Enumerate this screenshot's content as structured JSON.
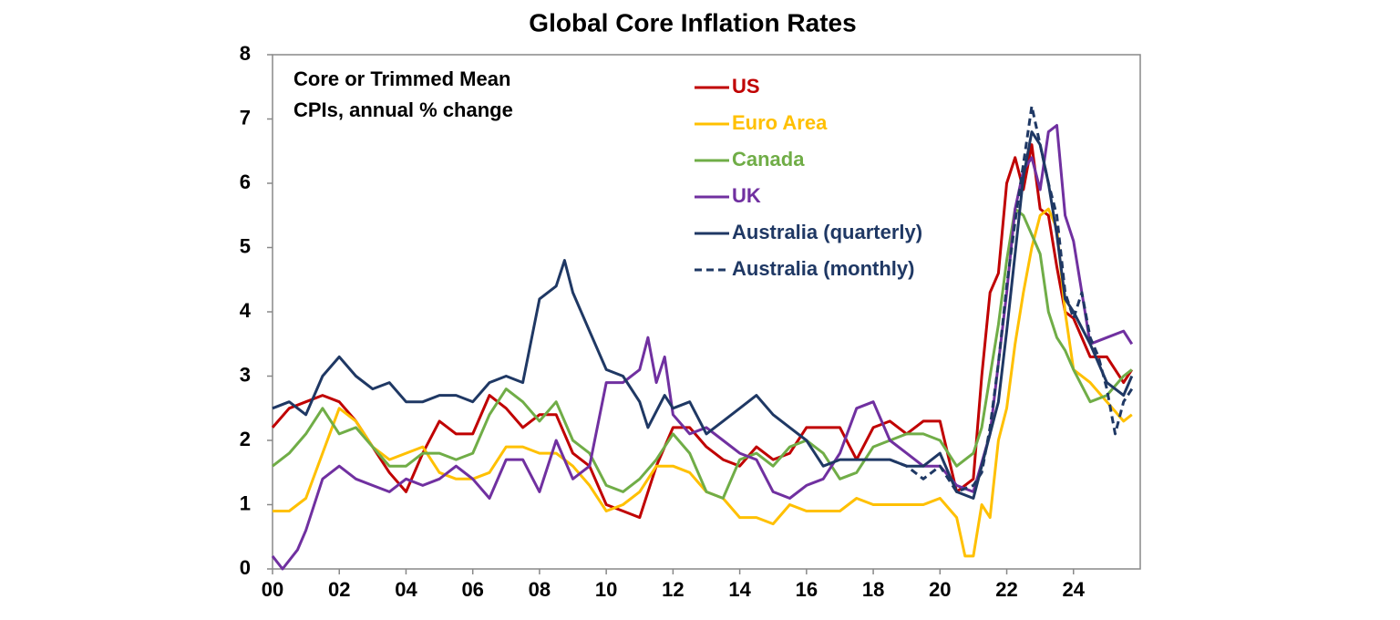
{
  "chart_data": {
    "type": "line",
    "title": "Global Core Inflation Rates",
    "annotation": [
      "Core or Trimmed Mean",
      "CPIs, annual % change"
    ],
    "xlim": [
      2000,
      2026
    ],
    "ylim": [
      0,
      8
    ],
    "yticks": [
      0,
      1,
      2,
      3,
      4,
      5,
      6,
      7,
      8
    ],
    "xticks": [
      {
        "value": 2000,
        "label": "00"
      },
      {
        "value": 2002,
        "label": "02"
      },
      {
        "value": 2004,
        "label": "04"
      },
      {
        "value": 2006,
        "label": "06"
      },
      {
        "value": 2008,
        "label": "08"
      },
      {
        "value": 2010,
        "label": "10"
      },
      {
        "value": 2012,
        "label": "12"
      },
      {
        "value": 2014,
        "label": "14"
      },
      {
        "value": 2016,
        "label": "16"
      },
      {
        "value": 2018,
        "label": "18"
      },
      {
        "value": 2020,
        "label": "20"
      },
      {
        "value": 2022,
        "label": "22"
      },
      {
        "value": 2024,
        "label": "24"
      }
    ],
    "grid": false,
    "legend": "top-center",
    "series": [
      {
        "name": "US",
        "color": "#c00000",
        "dashed": false,
        "x": [
          2000,
          2000.5,
          2001,
          2001.5,
          2002,
          2002.5,
          2003,
          2003.5,
          2004,
          2004.5,
          2005,
          2005.5,
          2006,
          2006.5,
          2007,
          2007.5,
          2008,
          2008.5,
          2009,
          2009.5,
          2010,
          2010.5,
          2011,
          2011.5,
          2012,
          2012.5,
          2013,
          2013.5,
          2014,
          2014.5,
          2015,
          2015.5,
          2016,
          2016.5,
          2017,
          2017.5,
          2018,
          2018.5,
          2019,
          2019.5,
          2020,
          2020.5,
          2021,
          2021.25,
          2021.5,
          2021.75,
          2022,
          2022.25,
          2022.5,
          2022.75,
          2023,
          2023.25,
          2023.5,
          2023.75,
          2024,
          2024.5,
          2025,
          2025.5,
          2025.75
        ],
        "values": [
          2.2,
          2.5,
          2.6,
          2.7,
          2.6,
          2.3,
          1.9,
          1.5,
          1.2,
          1.8,
          2.3,
          2.1,
          2.1,
          2.7,
          2.5,
          2.2,
          2.4,
          2.4,
          1.8,
          1.6,
          1.0,
          0.9,
          0.8,
          1.6,
          2.2,
          2.2,
          1.9,
          1.7,
          1.6,
          1.9,
          1.7,
          1.8,
          2.2,
          2.2,
          2.2,
          1.7,
          2.2,
          2.3,
          2.1,
          2.3,
          2.3,
          1.2,
          1.4,
          3.0,
          4.3,
          4.6,
          6.0,
          6.4,
          5.9,
          6.6,
          5.6,
          5.5,
          4.7,
          4.0,
          3.9,
          3.3,
          3.3,
          2.9,
          3.1
        ]
      },
      {
        "name": "Euro Area",
        "color": "#ffc000",
        "dashed": false,
        "x": [
          2000,
          2000.5,
          2001,
          2001.5,
          2002,
          2002.5,
          2003,
          2003.5,
          2004,
          2004.5,
          2005,
          2005.5,
          2006,
          2006.5,
          2007,
          2007.5,
          2008,
          2008.5,
          2009,
          2009.5,
          2010,
          2010.5,
          2011,
          2011.5,
          2012,
          2012.5,
          2013,
          2013.5,
          2014,
          2014.5,
          2015,
          2015.5,
          2016,
          2016.5,
          2017,
          2017.5,
          2018,
          2018.5,
          2019,
          2019.5,
          2020,
          2020.5,
          2020.75,
          2021,
          2021.25,
          2021.5,
          2021.75,
          2022,
          2022.25,
          2022.5,
          2022.75,
          2023,
          2023.25,
          2023.5,
          2023.75,
          2024,
          2024.5,
          2025,
          2025.5,
          2025.75
        ],
        "values": [
          0.9,
          0.9,
          1.1,
          1.8,
          2.5,
          2.3,
          1.9,
          1.7,
          1.8,
          1.9,
          1.5,
          1.4,
          1.4,
          1.5,
          1.9,
          1.9,
          1.8,
          1.8,
          1.6,
          1.3,
          0.9,
          1.0,
          1.2,
          1.6,
          1.6,
          1.5,
          1.2,
          1.1,
          0.8,
          0.8,
          0.7,
          1.0,
          0.9,
          0.9,
          0.9,
          1.1,
          1.0,
          1.0,
          1.0,
          1.0,
          1.1,
          0.8,
          0.2,
          0.2,
          1.0,
          0.8,
          2.0,
          2.5,
          3.5,
          4.3,
          5.0,
          5.5,
          5.6,
          5.3,
          4.0,
          3.1,
          2.9,
          2.6,
          2.3,
          2.4
        ]
      },
      {
        "name": "Canada",
        "color": "#70ad47",
        "dashed": false,
        "x": [
          2000,
          2000.5,
          2001,
          2001.5,
          2002,
          2002.5,
          2003,
          2003.5,
          2004,
          2004.5,
          2005,
          2005.5,
          2006,
          2006.5,
          2007,
          2007.5,
          2008,
          2008.5,
          2009,
          2009.5,
          2010,
          2010.5,
          2011,
          2011.5,
          2012,
          2012.5,
          2013,
          2013.5,
          2014,
          2014.5,
          2015,
          2015.5,
          2016,
          2016.5,
          2017,
          2017.5,
          2018,
          2018.5,
          2019,
          2019.5,
          2020,
          2020.5,
          2021,
          2021.25,
          2021.5,
          2021.75,
          2022,
          2022.25,
          2022.5,
          2022.75,
          2023,
          2023.25,
          2023.5,
          2023.75,
          2024,
          2024.5,
          2025,
          2025.5,
          2025.75
        ],
        "values": [
          1.6,
          1.8,
          2.1,
          2.5,
          2.1,
          2.2,
          1.9,
          1.6,
          1.6,
          1.8,
          1.8,
          1.7,
          1.8,
          2.4,
          2.8,
          2.6,
          2.3,
          2.6,
          2.0,
          1.8,
          1.3,
          1.2,
          1.4,
          1.7,
          2.1,
          1.8,
          1.2,
          1.1,
          1.7,
          1.8,
          1.6,
          1.9,
          2.0,
          1.8,
          1.4,
          1.5,
          1.9,
          2.0,
          2.1,
          2.1,
          2.0,
          1.6,
          1.8,
          2.2,
          3.0,
          3.8,
          4.8,
          5.6,
          5.5,
          5.2,
          4.9,
          4.0,
          3.6,
          3.4,
          3.1,
          2.6,
          2.7,
          3.0,
          3.1
        ]
      },
      {
        "name": "UK",
        "color": "#7030a0",
        "dashed": false,
        "x": [
          2000,
          2000.3,
          2000.75,
          2001,
          2001.5,
          2002,
          2002.5,
          2003,
          2003.5,
          2004,
          2004.5,
          2005,
          2005.5,
          2006,
          2006.5,
          2007,
          2007.5,
          2008,
          2008.5,
          2009,
          2009.5,
          2010,
          2010.5,
          2011,
          2011.25,
          2011.5,
          2011.75,
          2012,
          2012.5,
          2013,
          2013.5,
          2014,
          2014.5,
          2015,
          2015.5,
          2016,
          2016.5,
          2017,
          2017.5,
          2018,
          2018.5,
          2019,
          2019.5,
          2020,
          2020.5,
          2021,
          2021.5,
          2021.75,
          2022,
          2022.25,
          2022.5,
          2022.75,
          2023,
          2023.25,
          2023.5,
          2023.75,
          2024,
          2024.5,
          2025,
          2025.5,
          2025.75
        ],
        "values": [
          0.2,
          0,
          0.3,
          0.6,
          1.4,
          1.6,
          1.4,
          1.3,
          1.2,
          1.4,
          1.3,
          1.4,
          1.6,
          1.4,
          1.1,
          1.7,
          1.7,
          1.2,
          2.0,
          1.4,
          1.6,
          2.9,
          2.9,
          3.1,
          3.6,
          2.9,
          3.3,
          2.4,
          2.1,
          2.2,
          2.0,
          1.8,
          1.7,
          1.2,
          1.1,
          1.3,
          1.4,
          1.8,
          2.5,
          2.6,
          2.0,
          1.8,
          1.6,
          1.6,
          1.3,
          1.2,
          2.1,
          3.2,
          4.3,
          5.6,
          6.2,
          6.4,
          5.9,
          6.8,
          6.9,
          5.5,
          5.1,
          3.5,
          3.6,
          3.7,
          3.5
        ]
      },
      {
        "name": "Australia (quarterly)",
        "color": "#1f3864",
        "dashed": false,
        "x": [
          2000,
          2000.5,
          2001,
          2001.5,
          2002,
          2002.5,
          2003,
          2003.5,
          2004,
          2004.5,
          2005,
          2005.5,
          2006,
          2006.5,
          2007,
          2007.5,
          2008,
          2008.5,
          2008.75,
          2009,
          2009.5,
          2010,
          2010.5,
          2011,
          2011.25,
          2011.75,
          2012,
          2012.5,
          2013,
          2013.5,
          2014,
          2014.5,
          2015,
          2015.5,
          2016,
          2016.5,
          2017,
          2017.5,
          2018,
          2018.5,
          2019,
          2019.5,
          2020,
          2020.5,
          2021,
          2021.25,
          2021.5,
          2021.75,
          2022,
          2022.25,
          2022.5,
          2022.75,
          2023,
          2023.25,
          2023.5,
          2023.75,
          2024,
          2024.5,
          2025,
          2025.5,
          2025.75
        ],
        "values": [
          2.5,
          2.6,
          2.4,
          3.0,
          3.3,
          3.0,
          2.8,
          2.9,
          2.6,
          2.6,
          2.7,
          2.7,
          2.6,
          2.9,
          3.0,
          2.9,
          4.2,
          4.4,
          4.8,
          4.3,
          3.7,
          3.1,
          3.0,
          2.6,
          2.2,
          2.7,
          2.5,
          2.6,
          2.1,
          2.3,
          2.5,
          2.7,
          2.4,
          2.2,
          2.0,
          1.6,
          1.7,
          1.7,
          1.7,
          1.7,
          1.6,
          1.6,
          1.8,
          1.2,
          1.1,
          1.6,
          2.1,
          2.6,
          3.7,
          4.9,
          6.1,
          6.8,
          6.6,
          6.0,
          5.2,
          4.2,
          4.0,
          3.5,
          2.9,
          2.7,
          3.0
        ]
      },
      {
        "name": "Australia (monthly)",
        "color": "#1f3864",
        "dashed": true,
        "x": [
          2018.5,
          2019,
          2019.5,
          2020,
          2020.5,
          2021,
          2021.25,
          2021.5,
          2021.75,
          2022,
          2022.25,
          2022.5,
          2022.75,
          2023,
          2023.25,
          2023.5,
          2023.75,
          2024,
          2024.25,
          2024.5,
          2024.75,
          2025,
          2025.25,
          2025.5,
          2025.75
        ],
        "values": [
          1.7,
          1.6,
          1.4,
          1.6,
          1.2,
          1.3,
          1.5,
          2.2,
          3.2,
          4.4,
          5.4,
          6.3,
          7.2,
          6.6,
          6.0,
          5.5,
          4.3,
          3.9,
          4.3,
          3.6,
          3.3,
          2.8,
          2.1,
          2.6,
          2.8
        ]
      }
    ]
  }
}
